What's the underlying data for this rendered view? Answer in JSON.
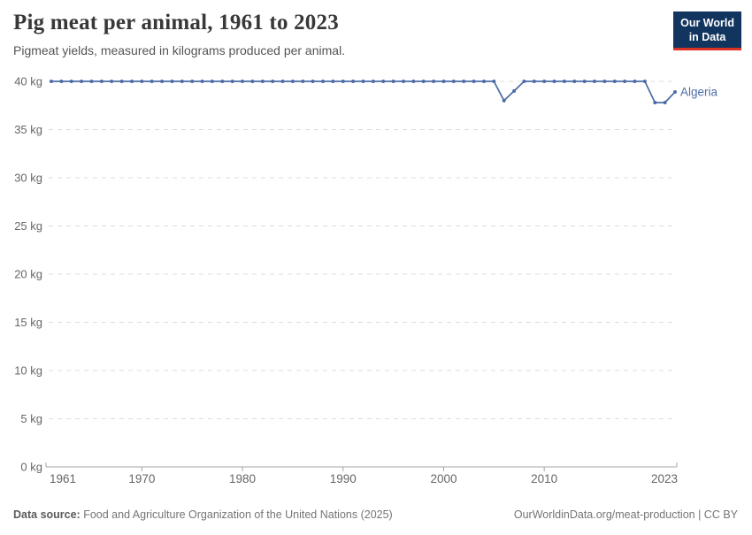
{
  "header": {
    "title": "Pig meat per animal, 1961 to 2023",
    "subtitle": "Pigmeat yields, measured in kilograms produced per animal."
  },
  "logo": {
    "line1": "Our World",
    "line2": "in Data",
    "bg_color": "#12355f",
    "accent_color": "#dc3223"
  },
  "footer": {
    "source_label": "Data source:",
    "source_text": " Food and Agriculture Organization of the United Nations (2025)",
    "right_text": "OurWorldinData.org/meat-production | CC BY"
  },
  "chart_data": {
    "type": "line",
    "title": "Pig meat per animal, 1961 to 2023",
    "subtitle": "Pigmeat yields, measured in kilograms produced per animal.",
    "unit": "kg",
    "xlabel": "",
    "ylabel": "",
    "ylim": [
      0,
      40
    ],
    "yticks": [
      0,
      5,
      10,
      15,
      20,
      25,
      30,
      35,
      40
    ],
    "ytick_label_suffix": " kg",
    "xticks": [
      1961,
      1970,
      1980,
      1990,
      2000,
      2010,
      2023
    ],
    "grid": "horizontal-dashed",
    "legend": "end-of-line-label",
    "x": [
      1961,
      1962,
      1963,
      1964,
      1965,
      1966,
      1967,
      1968,
      1969,
      1970,
      1971,
      1972,
      1973,
      1974,
      1975,
      1976,
      1977,
      1978,
      1979,
      1980,
      1981,
      1982,
      1983,
      1984,
      1985,
      1986,
      1987,
      1988,
      1989,
      1990,
      1991,
      1992,
      1993,
      1994,
      1995,
      1996,
      1997,
      1998,
      1999,
      2000,
      2001,
      2002,
      2003,
      2004,
      2005,
      2006,
      2007,
      2008,
      2009,
      2010,
      2011,
      2012,
      2013,
      2014,
      2015,
      2016,
      2017,
      2018,
      2019,
      2020,
      2021,
      2022,
      2023
    ],
    "series": [
      {
        "name": "Algeria",
        "color": "#4c6ca6",
        "values": [
          40,
          40,
          40,
          40,
          40,
          40,
          40,
          40,
          40,
          40,
          40,
          40,
          40,
          40,
          40,
          40,
          40,
          40,
          40,
          40,
          40,
          40,
          40,
          40,
          40,
          40,
          40,
          40,
          40,
          40,
          40,
          40,
          40,
          40,
          40,
          40,
          40,
          40,
          40,
          40,
          40,
          40,
          40,
          40,
          40,
          38,
          39,
          40,
          40,
          40,
          40,
          40,
          40,
          40,
          40,
          40,
          40,
          40,
          40,
          40,
          37.8,
          37.8,
          38.9
        ]
      }
    ],
    "colors": {
      "grid": "#dcdcdc",
      "axis": "#a5a5a5",
      "tick_label": "#666666"
    }
  }
}
